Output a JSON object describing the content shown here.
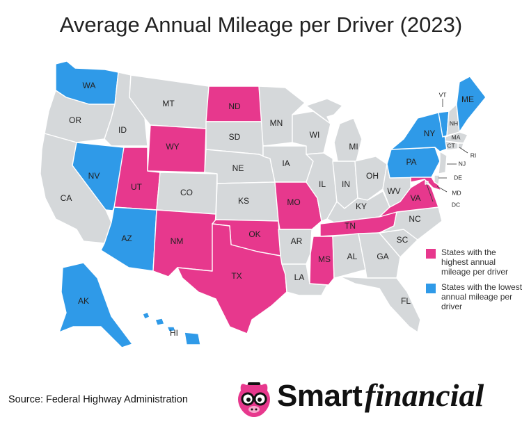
{
  "title": "Average Annual Mileage per Driver (2023)",
  "source": "Source: Federal Highway Administration",
  "brand": {
    "smart": "Smart",
    "financial": "financial"
  },
  "colors": {
    "high": "#e7388d",
    "low": "#2f9ae8",
    "other": "#d5d8da",
    "border": "#ffffff"
  },
  "legend": [
    {
      "key": "high",
      "label": "States with the highest annual mileage per driver"
    },
    {
      "key": "low",
      "label": "States with the lowest annual mileage per driver"
    }
  ],
  "states": [
    {
      "code": "WA",
      "cat": "low"
    },
    {
      "code": "OR",
      "cat": "other"
    },
    {
      "code": "CA",
      "cat": "other"
    },
    {
      "code": "ID",
      "cat": "other"
    },
    {
      "code": "NV",
      "cat": "low"
    },
    {
      "code": "MT",
      "cat": "other"
    },
    {
      "code": "WY",
      "cat": "high"
    },
    {
      "code": "UT",
      "cat": "high"
    },
    {
      "code": "AZ",
      "cat": "low"
    },
    {
      "code": "CO",
      "cat": "other"
    },
    {
      "code": "NM",
      "cat": "high"
    },
    {
      "code": "ND",
      "cat": "high"
    },
    {
      "code": "SD",
      "cat": "other"
    },
    {
      "code": "NE",
      "cat": "other"
    },
    {
      "code": "KS",
      "cat": "other"
    },
    {
      "code": "OK",
      "cat": "high"
    },
    {
      "code": "TX",
      "cat": "high"
    },
    {
      "code": "MN",
      "cat": "other"
    },
    {
      "code": "IA",
      "cat": "other"
    },
    {
      "code": "MO",
      "cat": "high"
    },
    {
      "code": "AR",
      "cat": "other"
    },
    {
      "code": "LA",
      "cat": "other"
    },
    {
      "code": "WI",
      "cat": "other"
    },
    {
      "code": "IL",
      "cat": "other"
    },
    {
      "code": "MI",
      "cat": "other"
    },
    {
      "code": "IN",
      "cat": "other"
    },
    {
      "code": "OH",
      "cat": "other"
    },
    {
      "code": "KY",
      "cat": "other"
    },
    {
      "code": "TN",
      "cat": "high"
    },
    {
      "code": "MS",
      "cat": "high"
    },
    {
      "code": "AL",
      "cat": "other"
    },
    {
      "code": "GA",
      "cat": "other"
    },
    {
      "code": "FL",
      "cat": "other"
    },
    {
      "code": "SC",
      "cat": "other"
    },
    {
      "code": "NC",
      "cat": "other"
    },
    {
      "code": "VA",
      "cat": "high"
    },
    {
      "code": "WV",
      "cat": "other"
    },
    {
      "code": "PA",
      "cat": "low"
    },
    {
      "code": "NY",
      "cat": "low"
    },
    {
      "code": "VT",
      "cat": "low"
    },
    {
      "code": "NH",
      "cat": "other"
    },
    {
      "code": "ME",
      "cat": "low"
    },
    {
      "code": "MA",
      "cat": "other"
    },
    {
      "code": "RI",
      "cat": "other"
    },
    {
      "code": "CT",
      "cat": "other"
    },
    {
      "code": "NJ",
      "cat": "other"
    },
    {
      "code": "DE",
      "cat": "other"
    },
    {
      "code": "MD",
      "cat": "high"
    },
    {
      "code": "DC",
      "cat": "other"
    },
    {
      "code": "AK",
      "cat": "low"
    },
    {
      "code": "HI",
      "cat": "low"
    }
  ]
}
